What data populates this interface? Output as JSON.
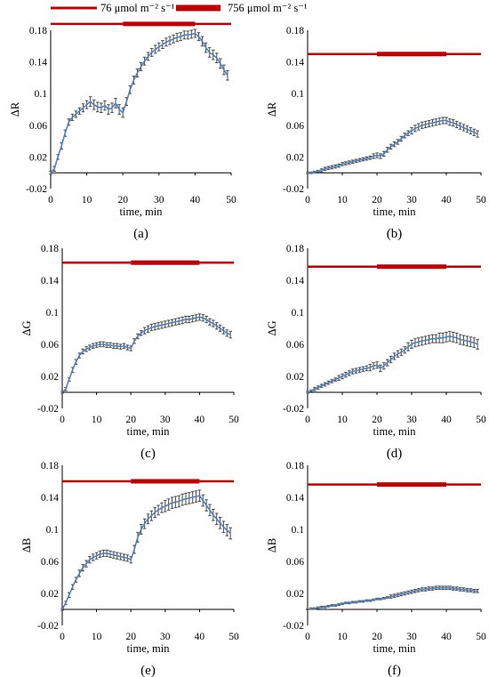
{
  "legend": {
    "items": [
      {
        "label": "76 μmol m⁻² s⁻¹",
        "color": "#c00000",
        "style": "thin-line"
      },
      {
        "label": "756 μmol m⁻² s⁻¹",
        "color": "#c00000",
        "style": "thick-line"
      }
    ]
  },
  "colors": {
    "series": "#4f81bd",
    "error_bar": "#4a4a4a",
    "light_bar": "#c00000",
    "axis": "#000000"
  },
  "chart_data": [
    {
      "panel": "(a)",
      "type": "line",
      "xlabel": "time, min",
      "ylabel": "ΔR",
      "xlim": [
        0,
        50
      ],
      "ylim": [
        -0.02,
        0.18
      ],
      "xticks": [
        0,
        10,
        20,
        30,
        40,
        50
      ],
      "yticks": [
        -0.02,
        0.02,
        0.06,
        0.1,
        0.14,
        0.18
      ],
      "light_bar_y": 0.188,
      "light_phases": [
        [
          0,
          20,
          "low"
        ],
        [
          20,
          40,
          "high"
        ],
        [
          40,
          50,
          "low"
        ]
      ],
      "x": [
        0,
        1,
        2,
        3,
        4,
        5,
        6,
        7,
        8,
        9,
        10,
        11,
        12,
        13,
        14,
        15,
        16,
        17,
        18,
        19,
        20,
        21,
        22,
        23,
        24,
        25,
        26,
        27,
        28,
        29,
        30,
        31,
        32,
        33,
        34,
        35,
        36,
        37,
        38,
        39,
        40,
        41,
        42,
        43,
        44,
        45,
        46,
        47,
        48,
        49
      ],
      "y": [
        0.0,
        0.005,
        0.02,
        0.034,
        0.05,
        0.064,
        0.07,
        0.074,
        0.078,
        0.082,
        0.086,
        0.09,
        0.086,
        0.083,
        0.082,
        0.085,
        0.08,
        0.082,
        0.088,
        0.08,
        0.076,
        0.09,
        0.105,
        0.117,
        0.126,
        0.134,
        0.141,
        0.147,
        0.152,
        0.156,
        0.159,
        0.162,
        0.165,
        0.167,
        0.169,
        0.171,
        0.172,
        0.174,
        0.174,
        0.175,
        0.176,
        0.172,
        0.166,
        0.158,
        0.152,
        0.149,
        0.145,
        0.138,
        0.13,
        0.123
      ],
      "err": [
        0.002,
        0.003,
        0.003,
        0.004,
        0.004,
        0.004,
        0.004,
        0.004,
        0.004,
        0.005,
        0.005,
        0.006,
        0.006,
        0.006,
        0.006,
        0.006,
        0.006,
        0.006,
        0.006,
        0.006,
        0.006,
        0.005,
        0.005,
        0.005,
        0.005,
        0.005,
        0.005,
        0.005,
        0.005,
        0.005,
        0.005,
        0.005,
        0.005,
        0.005,
        0.005,
        0.005,
        0.005,
        0.005,
        0.005,
        0.005,
        0.005,
        0.005,
        0.006,
        0.006,
        0.006,
        0.006,
        0.006,
        0.006,
        0.006,
        0.006
      ]
    },
    {
      "panel": "(b)",
      "type": "line",
      "xlabel": "time, min",
      "ylabel": "ΔR",
      "xlim": [
        0,
        50
      ],
      "ylim": [
        -0.02,
        0.18
      ],
      "xticks": [
        0,
        10,
        20,
        30,
        40,
        50
      ],
      "yticks": [
        -0.02,
        0.02,
        0.06,
        0.1,
        0.14,
        0.18
      ],
      "light_bar_y": 0.15,
      "light_phases": [
        [
          0,
          20,
          "low"
        ],
        [
          20,
          40,
          "high"
        ],
        [
          40,
          50,
          "low"
        ]
      ],
      "x": [
        0,
        1,
        2,
        3,
        4,
        5,
        6,
        7,
        8,
        9,
        10,
        11,
        12,
        13,
        14,
        15,
        16,
        17,
        18,
        19,
        20,
        21,
        22,
        23,
        24,
        25,
        26,
        27,
        28,
        29,
        30,
        31,
        32,
        33,
        34,
        35,
        36,
        37,
        38,
        39,
        40,
        41,
        42,
        43,
        44,
        45,
        46,
        47,
        48,
        49
      ],
      "y": [
        0.0,
        0.0,
        0.001,
        0.002,
        0.003,
        0.005,
        0.006,
        0.007,
        0.008,
        0.009,
        0.011,
        0.012,
        0.013,
        0.014,
        0.015,
        0.016,
        0.017,
        0.018,
        0.019,
        0.021,
        0.022,
        0.021,
        0.024,
        0.029,
        0.033,
        0.036,
        0.039,
        0.043,
        0.047,
        0.05,
        0.053,
        0.056,
        0.058,
        0.06,
        0.061,
        0.062,
        0.063,
        0.064,
        0.065,
        0.066,
        0.066,
        0.064,
        0.063,
        0.061,
        0.059,
        0.057,
        0.055,
        0.053,
        0.051,
        0.049
      ],
      "err": [
        0.001,
        0.001,
        0.001,
        0.001,
        0.002,
        0.002,
        0.002,
        0.002,
        0.002,
        0.002,
        0.002,
        0.002,
        0.002,
        0.002,
        0.002,
        0.002,
        0.002,
        0.002,
        0.002,
        0.003,
        0.003,
        0.003,
        0.003,
        0.003,
        0.003,
        0.003,
        0.003,
        0.003,
        0.003,
        0.003,
        0.004,
        0.004,
        0.004,
        0.004,
        0.004,
        0.004,
        0.004,
        0.004,
        0.004,
        0.004,
        0.004,
        0.004,
        0.004,
        0.004,
        0.004,
        0.004,
        0.004,
        0.004,
        0.004,
        0.004
      ]
    },
    {
      "panel": "(c)",
      "type": "line",
      "xlabel": "time, min",
      "ylabel": "ΔG",
      "xlim": [
        0,
        50
      ],
      "ylim": [
        -0.02,
        0.18
      ],
      "xticks": [
        0,
        10,
        20,
        30,
        40,
        50
      ],
      "yticks": [
        -0.02,
        0.02,
        0.06,
        0.1,
        0.14,
        0.18
      ],
      "light_bar_y": 0.162,
      "light_phases": [
        [
          0,
          20,
          "low"
        ],
        [
          20,
          40,
          "high"
        ],
        [
          40,
          50,
          "low"
        ]
      ],
      "x": [
        0,
        1,
        2,
        3,
        4,
        5,
        6,
        7,
        8,
        9,
        10,
        11,
        12,
        13,
        14,
        15,
        16,
        17,
        18,
        19,
        20,
        21,
        22,
        23,
        24,
        25,
        26,
        27,
        28,
        29,
        30,
        31,
        32,
        33,
        34,
        35,
        36,
        37,
        38,
        39,
        40,
        41,
        42,
        43,
        44,
        45,
        46,
        47,
        48,
        49
      ],
      "y": [
        0.0,
        0.004,
        0.016,
        0.028,
        0.038,
        0.046,
        0.051,
        0.054,
        0.056,
        0.058,
        0.059,
        0.06,
        0.06,
        0.059,
        0.059,
        0.058,
        0.058,
        0.057,
        0.058,
        0.056,
        0.055,
        0.064,
        0.07,
        0.074,
        0.077,
        0.079,
        0.081,
        0.082,
        0.083,
        0.084,
        0.085,
        0.086,
        0.087,
        0.088,
        0.089,
        0.09,
        0.091,
        0.091,
        0.092,
        0.093,
        0.094,
        0.093,
        0.091,
        0.088,
        0.086,
        0.083,
        0.08,
        0.077,
        0.074,
        0.072
      ],
      "err": [
        0.001,
        0.002,
        0.002,
        0.003,
        0.003,
        0.003,
        0.003,
        0.003,
        0.003,
        0.003,
        0.003,
        0.003,
        0.003,
        0.003,
        0.003,
        0.003,
        0.003,
        0.003,
        0.003,
        0.003,
        0.003,
        0.003,
        0.003,
        0.003,
        0.004,
        0.004,
        0.004,
        0.004,
        0.004,
        0.004,
        0.004,
        0.004,
        0.004,
        0.004,
        0.004,
        0.004,
        0.004,
        0.004,
        0.004,
        0.004,
        0.004,
        0.004,
        0.004,
        0.004,
        0.004,
        0.004,
        0.004,
        0.004,
        0.004,
        0.004
      ]
    },
    {
      "panel": "(d)",
      "type": "line",
      "xlabel": "time, min",
      "ylabel": "ΔG",
      "xlim": [
        0,
        50
      ],
      "ylim": [
        -0.02,
        0.18
      ],
      "xticks": [
        0,
        10,
        20,
        30,
        40,
        50
      ],
      "yticks": [
        -0.02,
        0.02,
        0.06,
        0.1,
        0.14,
        0.18
      ],
      "light_bar_y": 0.157,
      "light_phases": [
        [
          0,
          20,
          "low"
        ],
        [
          20,
          40,
          "high"
        ],
        [
          40,
          50,
          "low"
        ]
      ],
      "x": [
        0,
        1,
        2,
        3,
        4,
        5,
        6,
        7,
        8,
        9,
        10,
        11,
        12,
        13,
        14,
        15,
        16,
        17,
        18,
        19,
        20,
        21,
        22,
        23,
        24,
        25,
        26,
        27,
        28,
        29,
        30,
        31,
        32,
        33,
        34,
        35,
        36,
        37,
        38,
        39,
        40,
        41,
        42,
        43,
        44,
        45,
        46,
        47,
        48,
        49
      ],
      "y": [
        0.0,
        0.002,
        0.004,
        0.006,
        0.008,
        0.01,
        0.012,
        0.014,
        0.016,
        0.018,
        0.02,
        0.022,
        0.024,
        0.026,
        0.027,
        0.028,
        0.029,
        0.03,
        0.031,
        0.033,
        0.034,
        0.03,
        0.033,
        0.037,
        0.041,
        0.045,
        0.048,
        0.05,
        0.053,
        0.057,
        0.06,
        0.062,
        0.063,
        0.064,
        0.065,
        0.066,
        0.067,
        0.067,
        0.068,
        0.068,
        0.069,
        0.07,
        0.069,
        0.068,
        0.066,
        0.065,
        0.064,
        0.063,
        0.062,
        0.06
      ],
      "err": [
        0.001,
        0.001,
        0.002,
        0.002,
        0.002,
        0.002,
        0.002,
        0.002,
        0.002,
        0.003,
        0.003,
        0.003,
        0.003,
        0.003,
        0.003,
        0.003,
        0.003,
        0.003,
        0.004,
        0.004,
        0.004,
        0.004,
        0.004,
        0.004,
        0.004,
        0.004,
        0.004,
        0.004,
        0.004,
        0.005,
        0.005,
        0.005,
        0.005,
        0.005,
        0.005,
        0.005,
        0.005,
        0.005,
        0.006,
        0.006,
        0.006,
        0.006,
        0.006,
        0.006,
        0.006,
        0.006,
        0.006,
        0.006,
        0.006,
        0.006
      ]
    },
    {
      "panel": "(e)",
      "type": "line",
      "xlabel": "time, min",
      "ylabel": "ΔB",
      "xlim": [
        0,
        50
      ],
      "ylim": [
        -0.02,
        0.18
      ],
      "xticks": [
        0,
        10,
        20,
        30,
        40,
        50
      ],
      "yticks": [
        -0.02,
        0.02,
        0.06,
        0.1,
        0.14,
        0.18
      ],
      "light_bar_y": 0.16,
      "light_phases": [
        [
          0,
          20,
          "low"
        ],
        [
          20,
          40,
          "high"
        ],
        [
          40,
          50,
          "low"
        ]
      ],
      "x": [
        0,
        1,
        2,
        3,
        4,
        5,
        6,
        7,
        8,
        9,
        10,
        11,
        12,
        13,
        14,
        15,
        16,
        17,
        18,
        19,
        20,
        21,
        22,
        23,
        24,
        25,
        26,
        27,
        28,
        29,
        30,
        31,
        32,
        33,
        34,
        35,
        36,
        37,
        38,
        39,
        40,
        41,
        42,
        43,
        44,
        45,
        46,
        47,
        48,
        49
      ],
      "y": [
        0.0,
        0.008,
        0.018,
        0.028,
        0.037,
        0.045,
        0.052,
        0.057,
        0.062,
        0.065,
        0.067,
        0.069,
        0.07,
        0.07,
        0.069,
        0.068,
        0.067,
        0.066,
        0.065,
        0.064,
        0.062,
        0.075,
        0.09,
        0.1,
        0.107,
        0.113,
        0.117,
        0.121,
        0.124,
        0.127,
        0.129,
        0.131,
        0.133,
        0.134,
        0.135,
        0.137,
        0.138,
        0.139,
        0.14,
        0.141,
        0.142,
        0.136,
        0.13,
        0.124,
        0.118,
        0.113,
        0.108,
        0.103,
        0.099,
        0.095
      ],
      "err": [
        0.001,
        0.002,
        0.003,
        0.003,
        0.003,
        0.004,
        0.004,
        0.004,
        0.004,
        0.004,
        0.004,
        0.004,
        0.004,
        0.004,
        0.004,
        0.004,
        0.004,
        0.004,
        0.004,
        0.004,
        0.004,
        0.005,
        0.006,
        0.006,
        0.006,
        0.006,
        0.006,
        0.006,
        0.006,
        0.006,
        0.007,
        0.007,
        0.007,
        0.007,
        0.007,
        0.007,
        0.007,
        0.007,
        0.007,
        0.007,
        0.007,
        0.007,
        0.007,
        0.007,
        0.007,
        0.007,
        0.007,
        0.007,
        0.007,
        0.007
      ]
    },
    {
      "panel": "(f)",
      "type": "line",
      "xlabel": "time, min",
      "ylabel": "ΔB",
      "xlim": [
        0,
        50
      ],
      "ylim": [
        -0.02,
        0.18
      ],
      "xticks": [
        0,
        10,
        20,
        30,
        40,
        50
      ],
      "yticks": [
        -0.02,
        0.02,
        0.06,
        0.1,
        0.14,
        0.18
      ],
      "light_bar_y": 0.156,
      "light_phases": [
        [
          0,
          20,
          "low"
        ],
        [
          20,
          40,
          "high"
        ],
        [
          40,
          50,
          "low"
        ]
      ],
      "x": [
        0,
        1,
        2,
        3,
        4,
        5,
        6,
        7,
        8,
        9,
        10,
        11,
        12,
        13,
        14,
        15,
        16,
        17,
        18,
        19,
        20,
        21,
        22,
        23,
        24,
        25,
        26,
        27,
        28,
        29,
        30,
        31,
        32,
        33,
        34,
        35,
        36,
        37,
        38,
        39,
        40,
        41,
        42,
        43,
        44,
        45,
        46,
        47,
        48,
        49
      ],
      "y": [
        0.0,
        0.001,
        0.001,
        0.002,
        0.003,
        0.003,
        0.004,
        0.005,
        0.005,
        0.006,
        0.007,
        0.008,
        0.008,
        0.009,
        0.009,
        0.01,
        0.01,
        0.011,
        0.011,
        0.012,
        0.013,
        0.013,
        0.014,
        0.015,
        0.016,
        0.017,
        0.018,
        0.019,
        0.02,
        0.021,
        0.022,
        0.023,
        0.024,
        0.025,
        0.025,
        0.026,
        0.026,
        0.027,
        0.027,
        0.027,
        0.027,
        0.027,
        0.026,
        0.026,
        0.025,
        0.025,
        0.024,
        0.024,
        0.023,
        0.023
      ],
      "err": [
        0.0005,
        0.001,
        0.001,
        0.001,
        0.001,
        0.001,
        0.001,
        0.001,
        0.001,
        0.001,
        0.001,
        0.001,
        0.001,
        0.001,
        0.001,
        0.001,
        0.001,
        0.001,
        0.001,
        0.001,
        0.001,
        0.001,
        0.001,
        0.001,
        0.002,
        0.002,
        0.002,
        0.002,
        0.002,
        0.002,
        0.002,
        0.002,
        0.002,
        0.002,
        0.002,
        0.002,
        0.002,
        0.002,
        0.002,
        0.002,
        0.002,
        0.002,
        0.002,
        0.002,
        0.002,
        0.002,
        0.002,
        0.002,
        0.002,
        0.002
      ]
    }
  ]
}
